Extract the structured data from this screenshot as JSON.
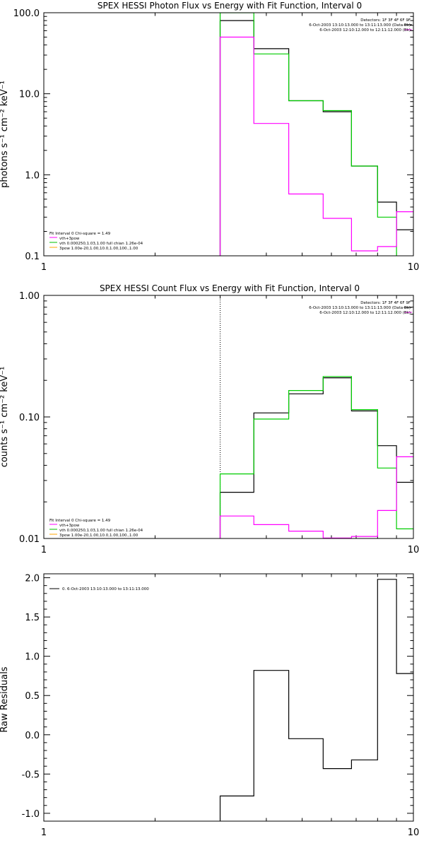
{
  "chart_data": [
    {
      "type": "line",
      "title": "SPEX HESSI Photon Flux vs Energy with Fit Function, Interval 0",
      "ylabel": "photons s⁻¹ cm⁻² keV⁻¹",
      "xscale": "log",
      "yscale": "log",
      "xlim": [
        1,
        10
      ],
      "ylim": [
        0.1,
        100
      ],
      "xticks": [
        "1",
        "10"
      ],
      "yticks": [
        {
          "v": 0.1,
          "label": "0.1"
        },
        {
          "v": 1,
          "label": "1.0"
        },
        {
          "v": 10,
          "label": "10.0"
        },
        {
          "v": 100,
          "label": "100.0"
        }
      ],
      "vline": {
        "x": 3,
        "color": "#00a000"
      },
      "info": [
        "Detectors: 1F 3F 4F 6F 9F",
        "6-Oct-2003 13:10:13.000 to 13:11:13.000 (Data-Bk)",
        "6-Oct-2003 12:10:12.000 to 12:11:12.000 (Bk)"
      ],
      "info_colors": [
        "#000000",
        "#000000",
        "#ff00ff"
      ],
      "fit_text": [
        "Fit Interval 0   Chi-square = 1.49",
        "vth+3pow",
        "vth 0.000250,1.03,1.00  full chian 1.26e-04",
        "3pow 1.00e-20,1.00,10.0,1.00,100.,1.00"
      ],
      "fit_colors": [
        "#000000",
        "#ff00ff",
        "#00c000",
        "#ffa500"
      ],
      "edges": [
        3,
        3.7,
        4.6,
        5.7,
        6.8,
        8.0,
        9.0,
        10
      ],
      "series": [
        {
          "color": "#000000",
          "values": [
            80,
            36,
            8.2,
            6.0,
            1.28,
            0.46,
            0.21
          ]
        },
        {
          "color": "#00cc00",
          "values": [
            100,
            31,
            8.2,
            6.2,
            1.28,
            0.3,
            0.03
          ]
        },
        {
          "color": "#ff00ff",
          "values": [
            50,
            4.3,
            0.58,
            0.29,
            0.115,
            0.13,
            0.35
          ]
        }
      ]
    },
    {
      "type": "line",
      "title": "SPEX HESSI Count Flux vs Energy with Fit Function, Interval 0",
      "ylabel": "counts s⁻¹ cm⁻² keV⁻¹",
      "xscale": "log",
      "yscale": "log",
      "xlim": [
        1,
        10
      ],
      "ylim": [
        0.01,
        1
      ],
      "xticks": [
        "1",
        "10"
      ],
      "yticks": [
        {
          "v": 0.01,
          "label": "0.01"
        },
        {
          "v": 0.1,
          "label": "0.10"
        },
        {
          "v": 1,
          "label": "1.00"
        }
      ],
      "vline": {
        "x": 3,
        "color": "#000000",
        "dotted": true
      },
      "info": [
        "Detectors: 1F 3F 4F 6F 9F",
        "6-Oct-2003 13:10:13.000 to 13:11:13.000 (Data-Bk)",
        "6-Oct-2003 12:10:12.000 to 12:11:12.000 (Bk)"
      ],
      "info_colors": [
        "#000000",
        "#000000",
        "#ff00ff"
      ],
      "fit_text": [
        "Fit Interval 0   Chi-square = 1.49",
        "vth+3pow",
        "vth 0.000250,1.03,1.00  full chian 1.26e-04",
        "3pow 1.00e-20,1.00,10.0,1.00,100.,1.00"
      ],
      "fit_colors": [
        "#000000",
        "#ff00ff",
        "#00c000",
        "#ffa500"
      ],
      "edges": [
        3,
        3.7,
        4.6,
        5.7,
        6.8,
        8.0,
        9.0,
        10
      ],
      "series": [
        {
          "color": "#000000",
          "values": [
            0.024,
            0.108,
            0.155,
            0.21,
            0.112,
            0.058,
            0.029
          ]
        },
        {
          "color": "#00cc00",
          "values": [
            0.034,
            0.096,
            0.165,
            0.215,
            0.115,
            0.038,
            0.012
          ]
        },
        {
          "color": "#ff00ff",
          "values": [
            0.0153,
            0.013,
            0.0115,
            0.0101,
            0.0104,
            0.017,
            0.047
          ]
        }
      ]
    },
    {
      "type": "line",
      "title": "",
      "ylabel": "Raw Residuals",
      "xscale": "log",
      "yscale": "linear",
      "xlim": [
        1,
        10
      ],
      "ylim": [
        -1.1,
        2.05
      ],
      "xticks": [
        "1",
        "10"
      ],
      "yticks": [
        {
          "v": -1.0,
          "label": "-1.0"
        },
        {
          "v": -0.5,
          "label": "-0.5"
        },
        {
          "v": 0.0,
          "label": "0.0"
        },
        {
          "v": 0.5,
          "label": "0.5"
        },
        {
          "v": 1.0,
          "label": "1.0"
        },
        {
          "v": 1.5,
          "label": "1.5"
        },
        {
          "v": 2.0,
          "label": "2.0"
        }
      ],
      "legend": [
        "0.  6-Oct-2003 13:10:13.000 to 13:11:13.000"
      ],
      "edges": [
        3,
        3.7,
        4.6,
        5.7,
        6.8,
        8.0,
        9.0,
        10
      ],
      "series": [
        {
          "color": "#000000",
          "values": [
            -0.78,
            0.82,
            -0.05,
            -0.43,
            -0.32,
            1.98,
            0.78
          ]
        }
      ]
    }
  ]
}
